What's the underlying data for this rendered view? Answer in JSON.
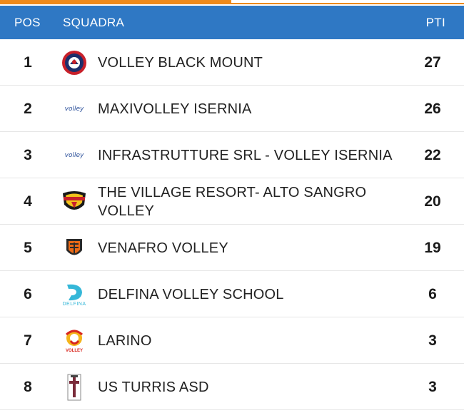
{
  "header": {
    "pos_label": "POS",
    "team_label": "SQUADRA",
    "points_label": "PTI"
  },
  "colors": {
    "header_bg": "#2f78c4",
    "accent": "#ee8a1c"
  },
  "rows": [
    {
      "pos": "1",
      "team": "VOLLEY BLACK MOUNT",
      "points": "27",
      "logo_icon": "black-mount-logo-icon"
    },
    {
      "pos": "2",
      "team": "MAXIVOLLEY ISERNIA",
      "points": "26",
      "logo_icon": "volley-isernia-logo-icon"
    },
    {
      "pos": "3",
      "team": "INFRASTRUTTURE SRL - VOLLEY ISERNIA",
      "points": "22",
      "logo_icon": "volley-isernia-logo-icon"
    },
    {
      "pos": "4",
      "team": "THE VILLAGE RESORT- ALTO SANGRO VOLLEY",
      "points": "20",
      "logo_icon": "alto-sangro-logo-icon"
    },
    {
      "pos": "5",
      "team": "VENAFRO VOLLEY",
      "points": "19",
      "logo_icon": "venafro-logo-icon"
    },
    {
      "pos": "6",
      "team": "DELFINA VOLLEY SCHOOL",
      "points": "6",
      "logo_icon": "delfina-logo-icon"
    },
    {
      "pos": "7",
      "team": "LARINO",
      "points": "3",
      "logo_icon": "larino-logo-icon"
    },
    {
      "pos": "8",
      "team": "US TURRIS ASD",
      "points": "3",
      "logo_icon": "turris-logo-icon"
    }
  ],
  "logo_text": {
    "volley_isernia": "volley",
    "delfina": "DELFINA",
    "larino": "VOLLEY"
  }
}
